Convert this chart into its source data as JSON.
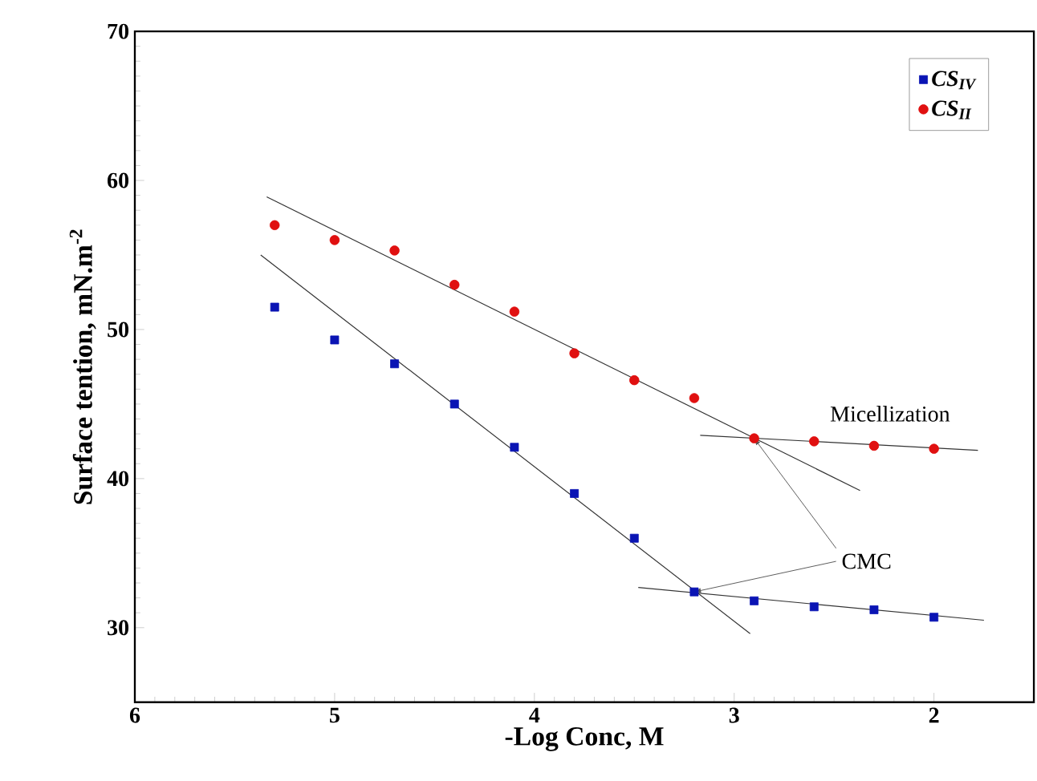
{
  "chart_data": {
    "type": "scatter",
    "xlabel": "-Log Conc, M",
    "ylabel": "Surface tention, mN.m$^{-2}$",
    "xlim": [
      6,
      1.5
    ],
    "ylim": [
      25,
      70
    ],
    "xticks": [
      6,
      5,
      4,
      3,
      2
    ],
    "yticks": [
      30,
      40,
      50,
      60,
      70
    ],
    "legend": "top right",
    "series": [
      {
        "name": "CS$_{IV}$",
        "color": "#0a14b4",
        "marker": "square",
        "x": [
          5.3,
          5.0,
          4.7,
          4.4,
          4.1,
          3.8,
          3.5,
          3.2,
          2.9,
          2.6,
          2.3,
          2.0
        ],
        "values": [
          51.5,
          49.3,
          47.7,
          45.0,
          42.1,
          39.0,
          36.0,
          32.4,
          31.8,
          31.4,
          31.2,
          30.7
        ]
      },
      {
        "name": "CS$_{II}$",
        "color": "#e01010",
        "marker": "circle",
        "x": [
          5.3,
          5.0,
          4.7,
          4.4,
          4.1,
          3.8,
          3.5,
          3.2,
          2.9,
          2.6,
          2.3,
          2.0
        ],
        "values": [
          57.0,
          56.0,
          55.3,
          53.0,
          51.2,
          48.4,
          46.6,
          45.4,
          42.7,
          42.5,
          42.2,
          42.0
        ]
      },
      {
        "type": "line",
        "color": "#333333",
        "marker": "none",
        "x": [
          5.34,
          2.37
        ],
        "values": [
          58.9,
          39.2
        ]
      },
      {
        "type": "line",
        "color": "#333333",
        "marker": "none",
        "x": [
          3.17,
          1.78
        ],
        "values": [
          42.9,
          41.9
        ]
      },
      {
        "type": "line",
        "color": "#333333",
        "marker": "none",
        "x": [
          5.37,
          2.92
        ],
        "values": [
          55.0,
          29.6
        ]
      },
      {
        "type": "line",
        "color": "#333333",
        "marker": "none",
        "x": [
          3.48,
          1.75
        ],
        "values": [
          32.7,
          30.5
        ]
      }
    ],
    "annotations": [
      "Micellization",
      {
        "text": "CMC",
        "x": 3.2,
        "y": 32.4
      }
    ]
  }
}
